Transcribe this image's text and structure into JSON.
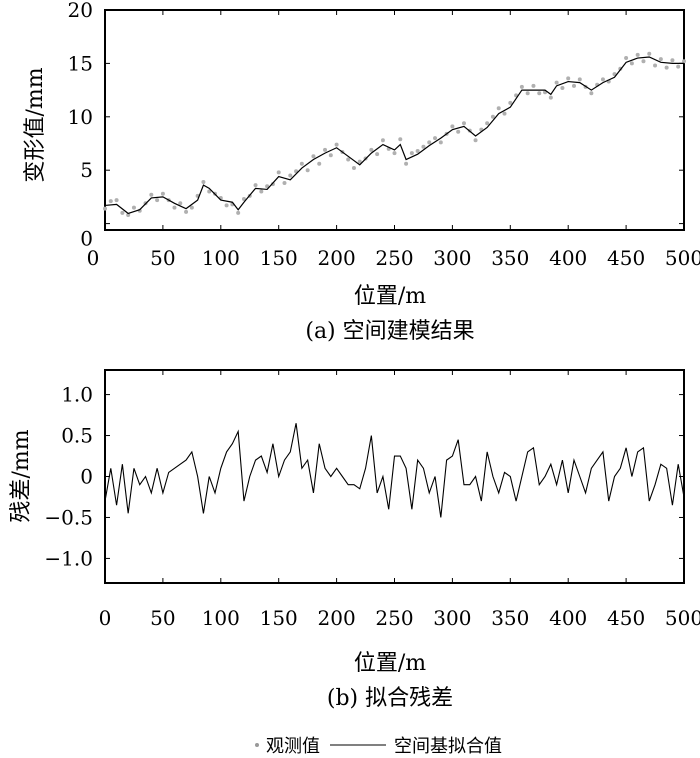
{
  "chart_data": [
    {
      "type": "scatter+line",
      "title": "(a) 空间建模结果",
      "xlabel": "位置/m",
      "ylabel": "变形值/mm",
      "xlim": [
        0,
        500
      ],
      "ylim": [
        -0.6,
        20
      ],
      "xticks": [
        "0",
        "50",
        "100",
        "150",
        "200",
        "250",
        "300",
        "350",
        "400",
        "450",
        "500"
      ],
      "yticks": [
        "20",
        "15",
        "10",
        "5",
        "0"
      ],
      "grid": false,
      "series": [
        {
          "name": "空间基拟合值",
          "kind": "line",
          "color": "#000000",
          "x": [
            0,
            10,
            20,
            30,
            40,
            50,
            60,
            70,
            80,
            85,
            90,
            100,
            110,
            115,
            120,
            130,
            140,
            150,
            160,
            170,
            180,
            190,
            200,
            210,
            220,
            230,
            240,
            250,
            255,
            260,
            270,
            280,
            290,
            300,
            310,
            320,
            330,
            340,
            350,
            360,
            370,
            380,
            385,
            390,
            400,
            410,
            420,
            430,
            440,
            450,
            460,
            470,
            480,
            490,
            500
          ],
          "y": [
            1.7,
            1.8,
            0.95,
            1.3,
            2.4,
            2.5,
            1.9,
            1.4,
            2.2,
            3.6,
            3.3,
            2.2,
            2.0,
            1.3,
            2.0,
            3.3,
            3.2,
            4.4,
            4.1,
            5.2,
            6.0,
            6.6,
            7.1,
            6.3,
            5.5,
            6.6,
            7.4,
            6.9,
            7.4,
            6.0,
            6.5,
            7.3,
            8.0,
            8.8,
            9.1,
            8.2,
            9.0,
            10.3,
            10.9,
            12.5,
            12.5,
            12.5,
            12.1,
            12.9,
            13.3,
            13.2,
            12.5,
            13.2,
            13.7,
            15.1,
            15.5,
            15.6,
            15.1,
            15.0,
            15.0
          ]
        },
        {
          "name": "观测值",
          "kind": "scatter",
          "color": "#b0b0b0",
          "x": [
            0,
            5,
            10,
            15,
            20,
            25,
            30,
            35,
            40,
            45,
            50,
            55,
            60,
            65,
            70,
            75,
            80,
            85,
            90,
            95,
            100,
            105,
            110,
            115,
            120,
            125,
            130,
            135,
            140,
            145,
            150,
            155,
            160,
            165,
            170,
            175,
            180,
            185,
            190,
            195,
            200,
            205,
            210,
            215,
            220,
            225,
            230,
            235,
            240,
            245,
            250,
            255,
            260,
            265,
            270,
            275,
            280,
            285,
            290,
            295,
            300,
            305,
            310,
            315,
            320,
            325,
            330,
            335,
            340,
            345,
            350,
            355,
            360,
            365,
            370,
            375,
            380,
            385,
            390,
            395,
            400,
            405,
            410,
            415,
            420,
            425,
            430,
            435,
            440,
            445,
            450,
            455,
            460,
            465,
            470,
            475,
            480,
            485,
            490,
            495,
            500
          ],
          "y": [
            1.4,
            2.1,
            2.2,
            1.0,
            0.8,
            1.5,
            1.2,
            1.9,
            2.7,
            2.2,
            2.8,
            2.2,
            1.5,
            1.9,
            1.1,
            1.5,
            2.6,
            3.9,
            3.0,
            2.8,
            2.4,
            1.7,
            1.8,
            1.0,
            2.3,
            2.6,
            3.6,
            3.0,
            3.5,
            3.7,
            4.8,
            3.8,
            4.5,
            4.9,
            5.6,
            5.0,
            6.3,
            5.6,
            6.9,
            6.4,
            7.4,
            6.7,
            6.0,
            5.2,
            5.8,
            6.1,
            6.9,
            6.5,
            7.8,
            7.0,
            6.6,
            7.9,
            5.6,
            6.6,
            6.8,
            7.2,
            7.6,
            8.0,
            7.6,
            8.4,
            9.1,
            8.6,
            9.4,
            8.7,
            7.8,
            8.8,
            9.4,
            10.0,
            10.8,
            10.3,
            11.3,
            12.0,
            12.8,
            12.2,
            12.9,
            12.2,
            12.3,
            11.8,
            13.2,
            12.7,
            13.6,
            12.9,
            13.5,
            12.8,
            12.2,
            13.0,
            13.5,
            13.3,
            14.0,
            14.5,
            15.5,
            15.0,
            15.8,
            15.2,
            15.9,
            14.8,
            15.4,
            14.6,
            15.3,
            14.7,
            15.2
          ]
        }
      ]
    },
    {
      "type": "line",
      "title": "(b) 拟合残差",
      "xlabel": "位置/m",
      "ylabel": "残差/mm",
      "xlim": [
        0,
        500
      ],
      "ylim": [
        -1.3,
        1.3
      ],
      "xticks": [
        "0",
        "50",
        "100",
        "150",
        "200",
        "250",
        "300",
        "350",
        "400",
        "450",
        "500"
      ],
      "yticks": [
        "1.0",
        "0.5",
        "0",
        "−0.5",
        "−1.0"
      ],
      "ytick_values": [
        1.0,
        0.5,
        0,
        -0.5,
        -1.0
      ],
      "grid": false,
      "series": [
        {
          "name": "残差",
          "color": "#000000",
          "x_step": 5,
          "y": [
            -0.3,
            0.1,
            -0.35,
            0.15,
            -0.45,
            0.1,
            -0.1,
            0.0,
            -0.2,
            0.1,
            -0.2,
            0.05,
            0.1,
            0.15,
            0.2,
            0.3,
            0.0,
            -0.45,
            0.0,
            -0.2,
            0.1,
            0.3,
            0.4,
            0.55,
            -0.3,
            0.0,
            0.2,
            0.25,
            0.05,
            0.4,
            0.0,
            0.2,
            0.3,
            0.65,
            0.1,
            0.2,
            -0.2,
            0.4,
            0.1,
            0.0,
            0.1,
            0.0,
            -0.1,
            -0.1,
            -0.15,
            0.1,
            0.5,
            -0.2,
            0.0,
            -0.4,
            0.25,
            0.25,
            0.1,
            -0.4,
            0.2,
            0.1,
            -0.2,
            0.0,
            -0.5,
            0.2,
            0.25,
            0.45,
            -0.1,
            -0.1,
            0.0,
            -0.3,
            0.3,
            0.0,
            -0.2,
            0.05,
            0.0,
            -0.3,
            0.0,
            0.3,
            0.35,
            -0.1,
            0.0,
            0.15,
            -0.1,
            0.2,
            -0.2,
            0.2,
            0.0,
            -0.2,
            0.1,
            0.2,
            0.3,
            -0.3,
            0.0,
            0.1,
            0.35,
            0.0,
            0.3,
            0.35,
            -0.3,
            -0.1,
            0.15,
            0.1,
            -0.35,
            0.15,
            -0.25
          ]
        }
      ]
    }
  ],
  "legend": {
    "observed": "观测值",
    "fitted": "空间基拟合值"
  }
}
